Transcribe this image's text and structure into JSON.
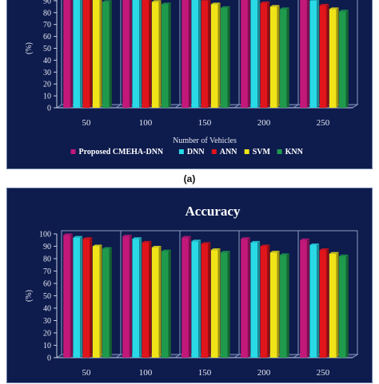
{
  "figure": {
    "caption_a": "(a)"
  },
  "chart_data": [
    {
      "type": "bar",
      "title": "",
      "xlabel": "Number of Vehicles",
      "ylabel": "(%)",
      "ylim": [
        0,
        100
      ],
      "yticks": [
        0,
        10,
        20,
        30,
        40,
        50,
        60,
        70,
        80,
        90
      ],
      "categories": [
        "50",
        "100",
        "150",
        "200",
        "250"
      ],
      "grid": false,
      "legend": "bottom",
      "series": [
        {
          "name": "Proposed CMEHA-DNN",
          "color": "#c2187a",
          "values": [
            99,
            98,
            97,
            96,
            95
          ]
        },
        {
          "name": "DNN",
          "color": "#29d9e6",
          "values": [
            97,
            95,
            93,
            92,
            90
          ]
        },
        {
          "name": "ANN",
          "color": "#e0141b",
          "values": [
            94,
            92,
            90,
            88,
            86
          ]
        },
        {
          "name": "SVM",
          "color": "#f0e419",
          "values": [
            91,
            89,
            87,
            85,
            83
          ]
        },
        {
          "name": "KNN",
          "color": "#1f9a4c",
          "values": [
            89,
            87,
            84,
            83,
            81
          ]
        }
      ]
    },
    {
      "type": "bar",
      "title": "Accuracy",
      "xlabel": "",
      "ylabel": "(%)",
      "ylim": [
        0,
        100
      ],
      "yticks": [
        0,
        10,
        20,
        30,
        40,
        50,
        60,
        70,
        80,
        90,
        100
      ],
      "categories": [
        "50",
        "100",
        "150",
        "200",
        "250"
      ],
      "grid": false,
      "legend": "none",
      "series": [
        {
          "name": "Proposed CMEHA-DNN",
          "color": "#c2187a",
          "values": [
            99,
            98,
            97,
            96,
            95
          ]
        },
        {
          "name": "DNN",
          "color": "#29d9e6",
          "values": [
            97,
            96,
            94,
            93,
            91
          ]
        },
        {
          "name": "ANN",
          "color": "#e0141b",
          "values": [
            96,
            93,
            92,
            90,
            87
          ]
        },
        {
          "name": "SVM",
          "color": "#f0e419",
          "values": [
            90,
            89,
            87,
            85,
            84
          ]
        },
        {
          "name": "KNN",
          "color": "#1f9a4c",
          "values": [
            88,
            86,
            85,
            83,
            82
          ]
        }
      ]
    }
  ]
}
